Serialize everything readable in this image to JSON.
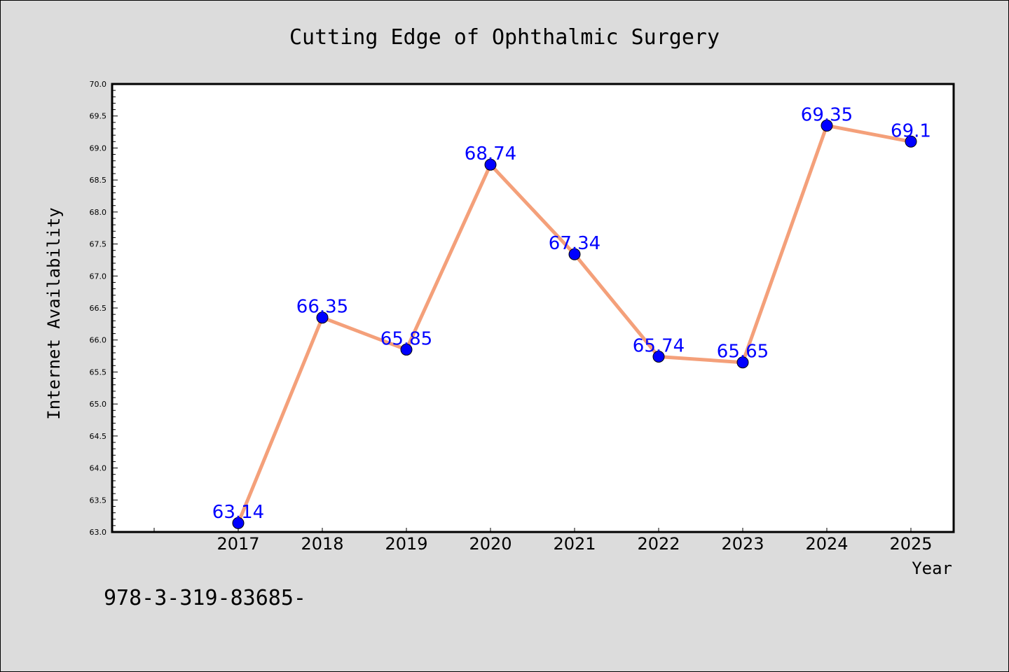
{
  "chart_data": {
    "type": "line",
    "title": "Cutting Edge of Ophthalmic Surgery",
    "xlabel": "Year",
    "ylabel": "Internet Availability",
    "categories": [
      "2017",
      "2018",
      "2019",
      "2020",
      "2021",
      "2022",
      "2023",
      "2024",
      "2025"
    ],
    "series": [
      {
        "values": [
          63.14,
          66.35,
          65.85,
          68.74,
          67.34,
          65.74,
          65.65,
          69.35,
          69.1
        ],
        "data_labels": [
          "63.14",
          "66.35",
          "65.85",
          "68.74",
          "67.34",
          "65.74",
          "65.65",
          "69.35",
          "69.1"
        ],
        "line_color": "#f4a07a",
        "marker_color": "#0000ff"
      }
    ],
    "ylim": [
      63.0,
      70.0
    ],
    "yticks": [
      "63.0",
      "63.5",
      "64.0",
      "64.5",
      "65.0",
      "65.5",
      "66.0",
      "66.5",
      "67.0",
      "67.5",
      "68.0",
      "68.5",
      "69.0",
      "69.5",
      "70.0"
    ],
    "grid": false,
    "legend": "none"
  },
  "footer_text": "978-3-319-83685-",
  "colors": {
    "background": "#dcdcdc",
    "plot_background": "#ffffff",
    "label_color": "#0000ff"
  }
}
